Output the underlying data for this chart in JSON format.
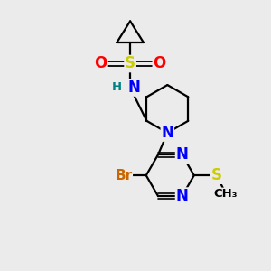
{
  "bg_color": "#ebebeb",
  "atom_colors": {
    "C": "#000000",
    "N": "#0000ff",
    "O": "#ff0000",
    "S": "#cccc00",
    "Br": "#cc6600",
    "H": "#008080"
  },
  "bond_color": "#000000",
  "bond_width": 1.6,
  "font_size_atom": 11,
  "font_size_small": 9.5
}
